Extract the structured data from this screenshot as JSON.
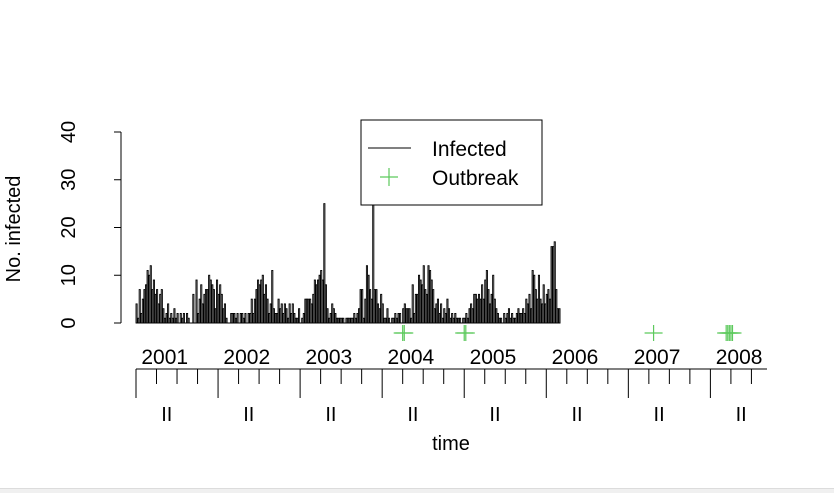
{
  "chart_data": {
    "type": "bar",
    "title": "",
    "xlabel": "time",
    "ylabel": "No. infected",
    "ylim": [
      0,
      40
    ],
    "yticks": [
      0,
      10,
      20,
      30,
      40
    ],
    "x_start": {
      "year": 2001,
      "week": 1
    },
    "weeks_per_year": 52,
    "year_labels": [
      "2001",
      "2002",
      "2003",
      "2004",
      "2005",
      "2006",
      "2007",
      "2008"
    ],
    "quarter_label": "II",
    "legend": {
      "position": "top-center",
      "entries": [
        {
          "label": "Infected",
          "symbol": "line",
          "color": "#000000"
        },
        {
          "label": "Outbreak",
          "symbol": "plus",
          "color": "#5cc95c"
        }
      ]
    },
    "series": [
      {
        "name": "Infected",
        "color": "#000000",
        "values": [
          4,
          1,
          7,
          2,
          5,
          7,
          8,
          11,
          10,
          12,
          7,
          9,
          6,
          7,
          4,
          6,
          7,
          3,
          1,
          2,
          4,
          1,
          2,
          1,
          3,
          1,
          2,
          0,
          2,
          1,
          2,
          0,
          2,
          1,
          0,
          0,
          6,
          0,
          9,
          2,
          5,
          8,
          4,
          6,
          7,
          7,
          10,
          9,
          8,
          7,
          3,
          9,
          6,
          8,
          6,
          3,
          4,
          1,
          0,
          0,
          2,
          2,
          2,
          1,
          2,
          0,
          2,
          2,
          1,
          2,
          0,
          2,
          2,
          5,
          2,
          5,
          7,
          9,
          8,
          9,
          10,
          6,
          8,
          5,
          2,
          4,
          11,
          3,
          2,
          2,
          5,
          3,
          4,
          2,
          4,
          3,
          1,
          4,
          2,
          4,
          2,
          1,
          1,
          3,
          0,
          1,
          2,
          5,
          5,
          5,
          5,
          4,
          6,
          9,
          8,
          9,
          10,
          11,
          9,
          25,
          8,
          3,
          1,
          2,
          4,
          3,
          2,
          1,
          1,
          1,
          1,
          1,
          0,
          1,
          1,
          1,
          1,
          1,
          2,
          1,
          2,
          3,
          7,
          7,
          1,
          5,
          12,
          10,
          7,
          5,
          26,
          7,
          7,
          4,
          3,
          6,
          4,
          1,
          1,
          3,
          1,
          0,
          1,
          1,
          2,
          1,
          2,
          2,
          0,
          3,
          4,
          3,
          3,
          3,
          1,
          8,
          2,
          6,
          6,
          10,
          9,
          8,
          12,
          7,
          6,
          12,
          11,
          9,
          7,
          3,
          4,
          5,
          2,
          4,
          1,
          3,
          2,
          5,
          3,
          1,
          2,
          1,
          2,
          1,
          1,
          1,
          0,
          1,
          1,
          2,
          1,
          3,
          4,
          3,
          6,
          6,
          5,
          6,
          5,
          8,
          5,
          9,
          11,
          7,
          4,
          6,
          10,
          5,
          3,
          2,
          1,
          1,
          0,
          2,
          1,
          2,
          3,
          1,
          2,
          1,
          1,
          2,
          3,
          2,
          2,
          3,
          2,
          5,
          4,
          6,
          3,
          11,
          10,
          7,
          5,
          10,
          5,
          4,
          8,
          4,
          6,
          7,
          5,
          16,
          16,
          17,
          7,
          3,
          3
        ]
      }
    ],
    "outbreaks": [
      {
        "year": 2004,
        "week": 14
      },
      {
        "year": 2004,
        "week": 15
      },
      {
        "year": 2005,
        "week": 1
      },
      {
        "year": 2005,
        "week": 2
      },
      {
        "year": 2007,
        "week": 17
      },
      {
        "year": 2008,
        "week": 11
      },
      {
        "year": 2008,
        "week": 12
      },
      {
        "year": 2008,
        "week": 13
      },
      {
        "year": 2008,
        "week": 14
      },
      {
        "year": 2008,
        "week": 15
      }
    ],
    "grid": false
  }
}
